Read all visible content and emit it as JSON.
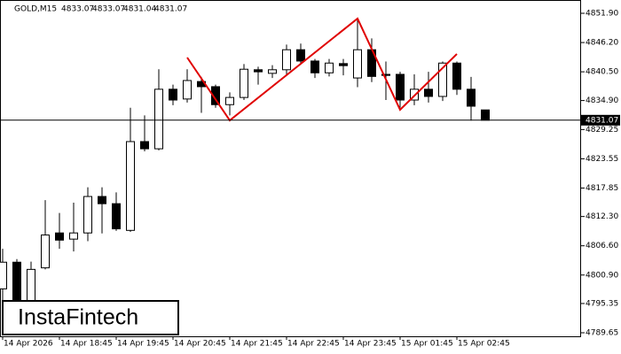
{
  "header": {
    "symbol": "GOLD,M15",
    "ohlc": [
      "4833.07",
      "4833.07",
      "4831.04",
      "4831.07"
    ]
  },
  "logo": "InstaFintech",
  "chart_data": {
    "type": "candlestick",
    "categories": [
      "14 Apr 2026",
      null,
      null,
      null,
      "14 Apr 18:45",
      null,
      null,
      null,
      "14 Apr 19:45",
      null,
      null,
      null,
      "14 Apr 20:45",
      null,
      null,
      null,
      "14 Apr 21:45",
      null,
      null,
      null,
      "14 Apr 22:45",
      null,
      null,
      null,
      "14 Apr 23:45",
      null,
      null,
      null,
      "15 Apr 01:45",
      null,
      null,
      null,
      "15 Apr 02:45",
      null,
      null
    ],
    "open": [
      4798.2,
      4803.4,
      4792.3,
      4802.3,
      4809.1,
      4807.9,
      4809.1,
      4816.2,
      4814.8,
      4809.6,
      4826.9,
      4825.5,
      4837.1,
      4835.2,
      4838.6,
      4837.6,
      4834.1,
      4835.5,
      4840.9,
      4840.2,
      4840.9,
      4844.8,
      4842.6,
      4840.3,
      4842.1,
      4839.3,
      4844.8,
      4840.0,
      4840.0,
      4835.0,
      4837.1,
      4835.7,
      4842.2,
      4837.1,
      4833.07
    ],
    "high": [
      4806.0,
      4804.0,
      4803.5,
      4815.5,
      4813.0,
      4815.0,
      4818.0,
      4818.0,
      4817.0,
      4833.5,
      4832.0,
      4841.0,
      4838.0,
      4841.0,
      4839.5,
      4838.0,
      4836.5,
      4842.0,
      4841.5,
      4841.8,
      4845.8,
      4846.0,
      4843.0,
      4843.0,
      4843.0,
      4851.0,
      4847.0,
      4842.5,
      4840.5,
      4840.0,
      4840.5,
      4842.5,
      4842.5,
      4839.5,
      4833.07
    ],
    "low": [
      4795.0,
      4792.0,
      4790.5,
      4802.0,
      4806.0,
      4805.5,
      4807.5,
      4809.0,
      4809.5,
      4809.3,
      4825.0,
      4825.2,
      4834.0,
      4834.5,
      4832.5,
      4833.5,
      4832.0,
      4835.0,
      4838.0,
      4839.3,
      4840.0,
      4842.0,
      4839.3,
      4839.6,
      4839.8,
      4837.5,
      4838.5,
      4835.0,
      4833.5,
      4834.0,
      4834.5,
      4834.8,
      4836.0,
      4831.0,
      4831.04
    ],
    "close": [
      4803.4,
      4795.8,
      4802.0,
      4808.7,
      4807.7,
      4809.1,
      4816.2,
      4814.8,
      4809.9,
      4826.9,
      4825.5,
      4837.1,
      4835.0,
      4838.8,
      4837.6,
      4834.1,
      4835.5,
      4841.0,
      4840.5,
      4840.9,
      4844.8,
      4842.6,
      4840.3,
      4842.2,
      4841.7,
      4844.8,
      4839.6,
      4839.8,
      4835.0,
      4837.1,
      4835.7,
      4842.2,
      4837.1,
      4833.8,
      4831.07
    ],
    "up_color": "#ffffff",
    "down_color": "#000000",
    "current_price": {
      "value": 4831.07,
      "label": "4831.07"
    },
    "ylim": [
      4788.96,
      4854.49
    ],
    "yticks": [
      {
        "value": 4789.65,
        "label": "4789.65"
      },
      {
        "value": 4795.35,
        "label": "4795.35"
      },
      {
        "value": 4800.9,
        "label": "4800.90"
      },
      {
        "value": 4806.6,
        "label": "4806.60"
      },
      {
        "value": 4812.3,
        "label": "4812.30"
      },
      {
        "value": 4817.85,
        "label": "4817.85"
      },
      {
        "value": 4823.55,
        "label": "4823.55"
      },
      {
        "value": 4829.25,
        "label": "4829.25"
      },
      {
        "value": 4834.9,
        "label": "4834.90"
      },
      {
        "value": 4840.5,
        "label": "4840.50"
      },
      {
        "value": 4846.2,
        "label": "4846.20"
      },
      {
        "value": 4851.9,
        "label": "4851.90"
      }
    ]
  }
}
